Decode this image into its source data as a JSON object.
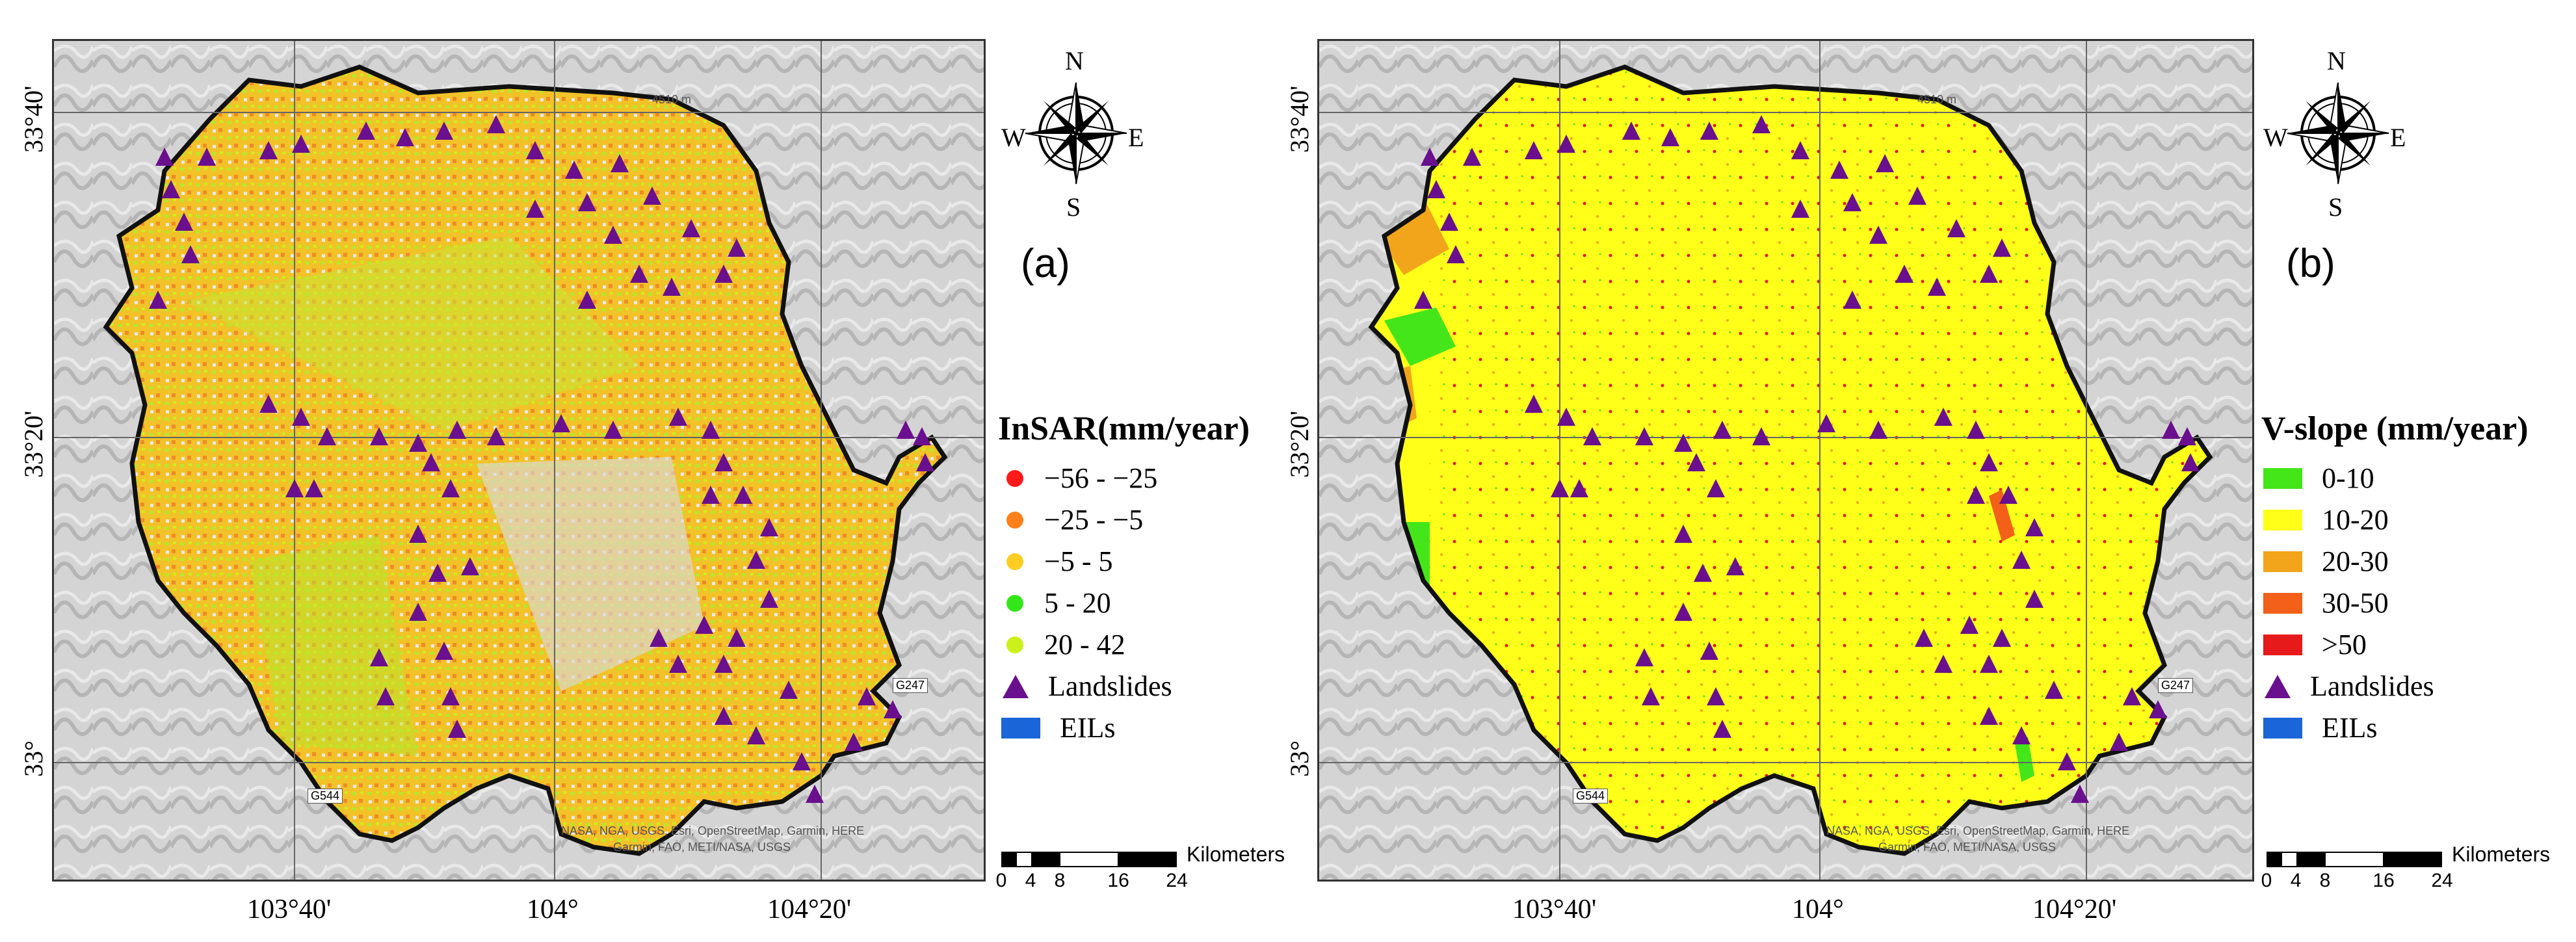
{
  "lat_labels": [
    "33°40'",
    "33°20'",
    "33°"
  ],
  "lon_labels": [
    "103°40'",
    "104°",
    "104°20'"
  ],
  "compass": {
    "n": "N",
    "s": "S",
    "e": "E",
    "w": "W"
  },
  "scale": {
    "ticks": [
      "0",
      "4",
      "8",
      "16",
      "24"
    ],
    "unit": "Kilometers"
  },
  "road_labels": [
    "G544",
    "G247"
  ],
  "contour_label": "4510 m",
  "credit_line1": "NASA, NGA, USGS, Esri, OpenStreetMap, Garmin, HERE",
  "credit_line2": "Garmin, FAO, METI/NASA, USGS",
  "panel_a": {
    "letter": "(a)",
    "legend_title": "InSAR(mm/year)",
    "legend": [
      {
        "label": "−56 - −25",
        "color": "#ff1a1a",
        "kind": "dot"
      },
      {
        "label": "−25 - −5",
        "color": "#ff7f1a",
        "kind": "dot"
      },
      {
        "label": "−5 - 5",
        "color": "#ffcc22",
        "kind": "dot"
      },
      {
        "label": "5 - 20",
        "color": "#33e61a",
        "kind": "dot"
      },
      {
        "label": "20 - 42",
        "color": "#ccf01a",
        "kind": "dot"
      },
      {
        "label": "Landslides",
        "color": "#6a0f8e",
        "kind": "triangle"
      },
      {
        "label": "EILs",
        "color": "#1a66d9",
        "kind": "rect"
      }
    ]
  },
  "panel_b": {
    "letter": "(b)",
    "legend_title": "V-slope (mm/year)",
    "legend": [
      {
        "label": "0-10",
        "color": "#44e61a",
        "kind": "rect"
      },
      {
        "label": "10-20",
        "color": "#ffff1a",
        "kind": "rect"
      },
      {
        "label": "20-30",
        "color": "#f2a51a",
        "kind": "rect"
      },
      {
        "label": "30-50",
        "color": "#f2601a",
        "kind": "rect"
      },
      {
        "label": ">50",
        "color": "#e61a1a",
        "kind": "rect"
      },
      {
        "label": "Landslides",
        "color": "#6a0f8e",
        "kind": "triangle"
      },
      {
        "label": "EILs",
        "color": "#1a66d9",
        "kind": "rect"
      }
    ]
  }
}
